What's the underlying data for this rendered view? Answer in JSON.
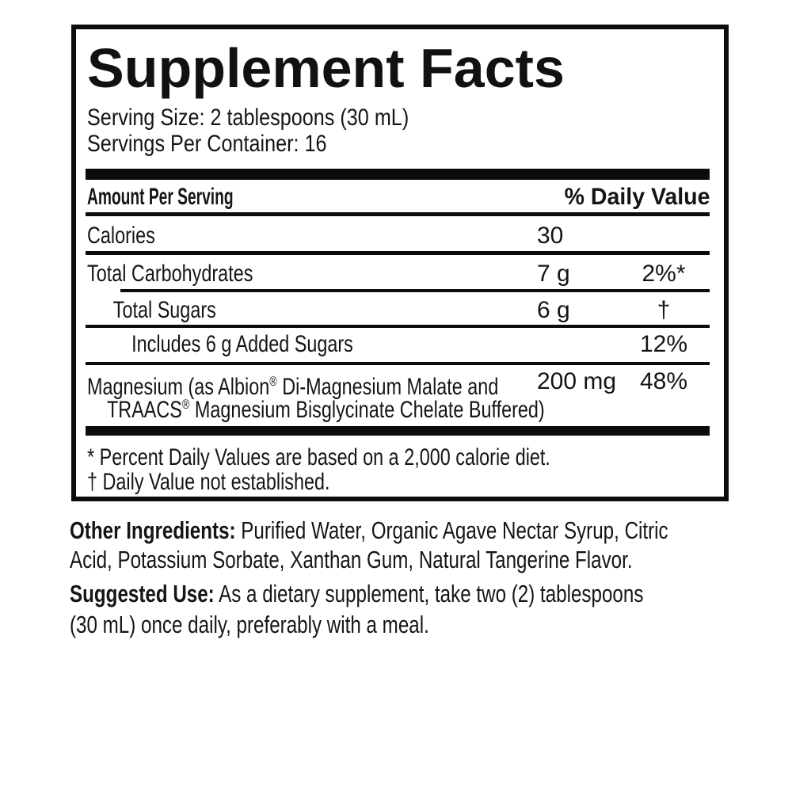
{
  "colors": {
    "background": "#ffffff",
    "text": "#151515",
    "rule": "#0c0c0c"
  },
  "label": {
    "title": "Supplement Facts",
    "serving_size": "Serving Size: 2 tablespoons (30 mL)",
    "servings_per_container": "Servings Per Container: 16",
    "columns": {
      "amount_per_serving": "Amount Per Serving",
      "daily_value": "% Daily Value"
    },
    "rows": [
      {
        "name": "Calories",
        "amount": "30",
        "dv": ""
      },
      {
        "name": "Total Carbohydrates",
        "amount": "7 g",
        "dv": "2%*"
      },
      {
        "name": "Total Sugars",
        "amount": "6 g",
        "dv": "†"
      },
      {
        "name": "Includes 6 g Added Sugars",
        "amount": "",
        "dv": "12%"
      },
      {
        "name_line1_part1": "Magnesium (as Albion",
        "reg1": "®",
        "name_line1_part2": " Di-Magnesium Malate and",
        "name_line2_part1": "TRAACS",
        "reg2": "®",
        "name_line2_part2": " Magnesium Bisglycinate Chelate Buffered)",
        "amount": "200 mg",
        "dv": "48%"
      }
    ],
    "footnotes": [
      "* Percent Daily Values are based on a 2,000 calorie diet.",
      "† Daily Value not established."
    ]
  },
  "info": {
    "other_ingredients_label": "Other Ingredients:",
    "other_ingredients_line1": " Purified Water, Organic Agave Nectar Syrup, Citric",
    "other_ingredients_line2": "Acid, Potassium Sorbate, Xanthan Gum, Natural Tangerine Flavor.",
    "suggested_use_label": "Suggested Use:",
    "suggested_use_line1": " As a dietary supplement, take two (2) tablespoons",
    "suggested_use_line2": "(30 mL) once daily, preferably with a meal."
  }
}
